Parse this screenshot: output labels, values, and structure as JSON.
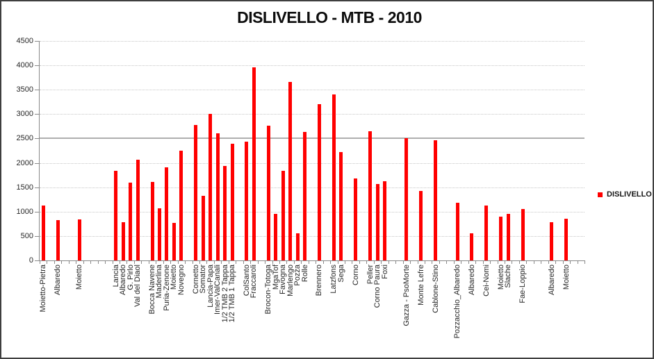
{
  "chart": {
    "title": "DISLIVELLO - MTB - 2010",
    "legend": {
      "label": "DISLIVELLO"
    }
  },
  "colors": {
    "bar": "#ff0000",
    "gridline": "#c6c6c6",
    "emphasis_gridline": "#aeaeae",
    "axis_line": "#898989",
    "text": "#262626",
    "title_text": "#0d0d0d",
    "frame_border": "#3f3f3f"
  },
  "chart_data": {
    "type": "bar",
    "title": "DISLIVELLO - MTB - 2010",
    "series_name": "DISLIVELLO",
    "xlabel": "",
    "ylabel": "",
    "ylim": [
      0,
      4500
    ],
    "ytick_step": 500,
    "grid": "horizontal dotted gridlines every 500; heavier solid gray line at 2500",
    "legend_position": "right-middle",
    "category_slots_total": 75,
    "note_layout": "category axis has empty slots between groups of bars; slot = 0-based category index",
    "points": [
      {
        "label": "Moietto-Pietra",
        "slot": 0,
        "value": 1120
      },
      {
        "label": "Albaredo",
        "slot": 2,
        "value": 830
      },
      {
        "label": "Moietto",
        "slot": 5,
        "value": 840
      },
      {
        "label": "Lancia",
        "slot": 10,
        "value": 1840
      },
      {
        "label": "Albaredo",
        "slot": 11,
        "value": 780
      },
      {
        "label": "G. Pirlo",
        "slot": 12,
        "value": 1600
      },
      {
        "label": "Val del Diaol",
        "slot": 13,
        "value": 2060
      },
      {
        "label": "Bocca Navene",
        "slot": 15,
        "value": 1610
      },
      {
        "label": "Maderlina",
        "slot": 16,
        "value": 1070
      },
      {
        "label": "Puria-Zenone",
        "slot": 17,
        "value": 1910
      },
      {
        "label": "Moietto",
        "slot": 18,
        "value": 770
      },
      {
        "label": "Novegno",
        "slot": 19,
        "value": 2250
      },
      {
        "label": "Cornetto",
        "slot": 21,
        "value": 2770
      },
      {
        "label": "Somator",
        "slot": 22,
        "value": 1320
      },
      {
        "label": "Lancia-Papa",
        "slot": 23,
        "value": 3000
      },
      {
        "label": "Imer-ValCanali",
        "slot": 24,
        "value": 2610
      },
      {
        "label": "1/2 TMB 2 Tappa",
        "slot": 25,
        "value": 1940
      },
      {
        "label": "1/2 TMB 1 Tappa",
        "slot": 26,
        "value": 2390
      },
      {
        "label": "ColSanto",
        "slot": 28,
        "value": 2430
      },
      {
        "label": "Fraccaroli",
        "slot": 29,
        "value": 3960
      },
      {
        "label": "Brocon-Totoga",
        "slot": 31,
        "value": 2760
      },
      {
        "label": "MgaTof",
        "slot": 32,
        "value": 950
      },
      {
        "label": "Favogna",
        "slot": 33,
        "value": 1830
      },
      {
        "label": "Marlengo",
        "slot": 34,
        "value": 3660
      },
      {
        "label": "Pozza",
        "slot": 35,
        "value": 550
      },
      {
        "label": "Rolle",
        "slot": 36,
        "value": 2640
      },
      {
        "label": "Brennero",
        "slot": 38,
        "value": 3210
      },
      {
        "label": "Latzfons",
        "slot": 40,
        "value": 3410
      },
      {
        "label": "Sega",
        "slot": 41,
        "value": 2220
      },
      {
        "label": "Corno",
        "slot": 43,
        "value": 1680
      },
      {
        "label": "Peller",
        "slot": 45,
        "value": 2650
      },
      {
        "label": "Corno Paura",
        "slot": 46,
        "value": 1560
      },
      {
        "label": "Foxi",
        "slot": 47,
        "value": 1620
      },
      {
        "label": "Gazza - PsoMorte",
        "slot": 50,
        "value": 2500
      },
      {
        "label": "Monte Lefre",
        "slot": 52,
        "value": 1430
      },
      {
        "label": "Cablone-Stino",
        "slot": 54,
        "value": 2470
      },
      {
        "label": "Pozzacchio_Albaredo",
        "slot": 57,
        "value": 1180
      },
      {
        "label": "Albaredo",
        "slot": 59,
        "value": 550
      },
      {
        "label": "Cei-Nomi",
        "slot": 61,
        "value": 1130
      },
      {
        "label": "Moietto",
        "slot": 63,
        "value": 900
      },
      {
        "label": "Slache",
        "slot": 64,
        "value": 950
      },
      {
        "label": "Fae-Loppio",
        "slot": 66,
        "value": 1050
      },
      {
        "label": "Albaredo",
        "slot": 70,
        "value": 790
      },
      {
        "label": "Moietto",
        "slot": 72,
        "value": 860
      }
    ],
    "emphasis_gridline_value": 2500
  }
}
